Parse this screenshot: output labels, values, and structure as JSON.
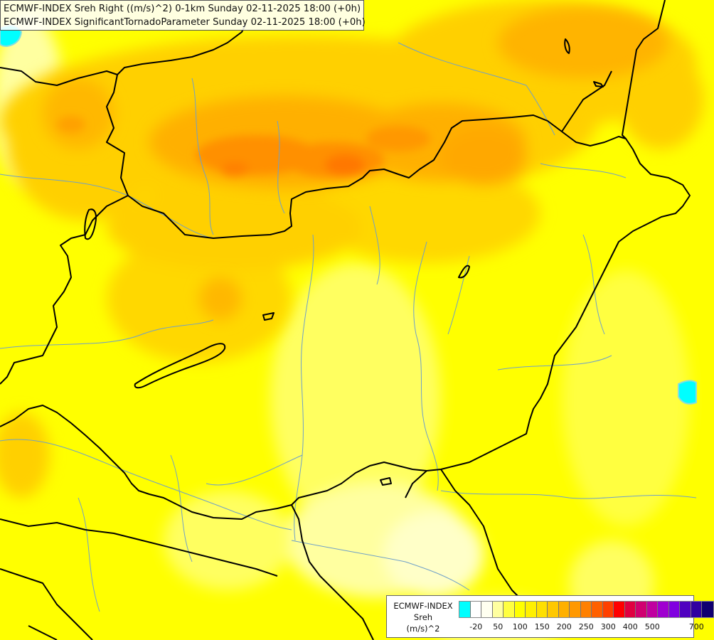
{
  "header": {
    "line1": "ECMWF-INDEX Sreh Right ((m/s)^2) 0-1km Sunday 02-11-2025 18:00 (+0h)",
    "line2": "ECMWF-INDEX SignificantTornadoParameter Sunday 02-11-2025 18:00 (+0h)"
  },
  "legend": {
    "title_line1": "ECMWF-INDEX",
    "title_line2": "Sreh",
    "title_line3": "(m/s)^2",
    "swatch_colors": [
      "#00ffff",
      "#ffffff",
      "#fffff0",
      "#ffffa0",
      "#ffff40",
      "#ffff00",
      "#fff000",
      "#ffe000",
      "#ffc800",
      "#ffb000",
      "#ff9800",
      "#ff8000",
      "#ff6000",
      "#ff4000",
      "#ff0000",
      "#e00040",
      "#d00070",
      "#c000a0",
      "#a000d0",
      "#8000e0",
      "#5000c0",
      "#3000a0",
      "#100070"
    ],
    "ticks": [
      "-20",
      "50",
      "100",
      "150",
      "200",
      "250",
      "300",
      "400",
      "500",
      "700"
    ]
  },
  "colors": {
    "land_base": "#ffff00",
    "water": "#00ffff",
    "border": "#000000",
    "river": "#6fa0c8"
  }
}
